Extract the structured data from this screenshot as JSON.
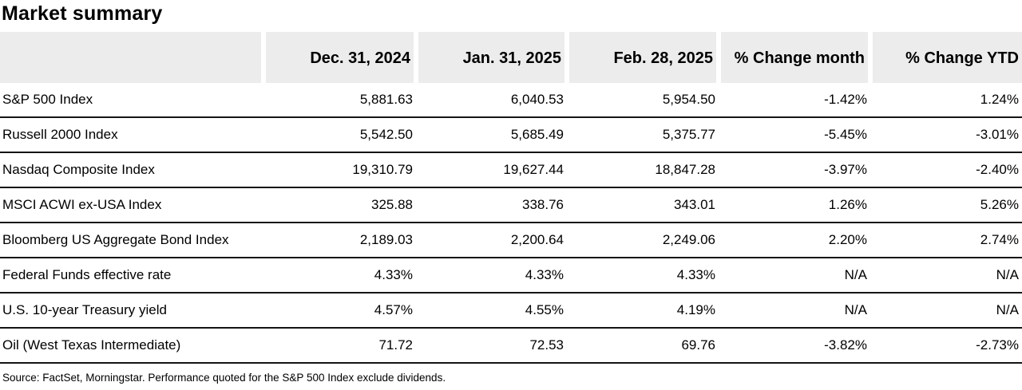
{
  "page": {
    "title": "Market summary",
    "source_note": "Source: FactSet, Morningstar. Performance quoted for the S&P 500 Index exclude dividends."
  },
  "table": {
    "columns": [
      "",
      "Dec. 31, 2024",
      "Jan. 31, 2025",
      "Feb. 28, 2025",
      "% Change month",
      "% Change YTD"
    ],
    "rows": [
      {
        "label": "S&P 500 Index",
        "values": [
          "5,881.63",
          "6,040.53",
          "5,954.50",
          "-1.42%",
          "1.24%"
        ]
      },
      {
        "label": "Russell 2000 Index",
        "values": [
          "5,542.50",
          "5,685.49",
          "5,375.77",
          "-5.45%",
          "-3.01%"
        ]
      },
      {
        "label": "Nasdaq Composite Index",
        "values": [
          "19,310.79",
          "19,627.44",
          "18,847.28",
          "-3.97%",
          "-2.40%"
        ]
      },
      {
        "label": "MSCI ACWI ex-USA Index",
        "values": [
          "325.88",
          "338.76",
          "343.01",
          "1.26%",
          "5.26%"
        ]
      },
      {
        "label": "Bloomberg US Aggregate Bond Index",
        "values": [
          "2,189.03",
          "2,200.64",
          "2,249.06",
          "2.20%",
          "2.74%"
        ]
      },
      {
        "label": "Federal Funds effective rate",
        "values": [
          "4.33%",
          "4.33%",
          "4.33%",
          "N/A",
          "N/A"
        ]
      },
      {
        "label": "U.S. 10-year Treasury yield",
        "values": [
          "4.57%",
          "4.55%",
          "4.19%",
          "N/A",
          "N/A"
        ]
      },
      {
        "label": "Oil (West Texas Intermediate)",
        "values": [
          "71.72",
          "72.53",
          "69.76",
          "-3.82%",
          "-2.73%"
        ]
      }
    ]
  },
  "colors": {
    "header_bg": "#ececec",
    "row_border": "#141414",
    "text": "#000000",
    "background": "#ffffff"
  }
}
